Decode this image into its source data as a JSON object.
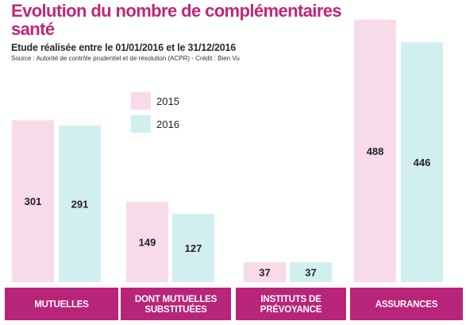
{
  "chart_data": {
    "type": "bar",
    "title": "Evolution du nombre de complémentaires santé",
    "subtitle": "Etude réalisée entre le 01/01/2016 et le 31/12/2016",
    "source": "Source : Autorité de contrôle prudentiel et de résolution (ACPR) - Crédit : Bien Vu",
    "categories": [
      [
        "MUTUELLES"
      ],
      [
        "DONT MUTUELLES",
        "SUBSTITUÉES"
      ],
      [
        "INSTITUTS DE",
        "PRÉVOYANCE"
      ],
      [
        "ASSURANCES"
      ]
    ],
    "series": [
      {
        "name": "2015",
        "values": [
          301,
          149,
          37,
          488
        ],
        "color": "#f7dbe8"
      },
      {
        "name": "2016",
        "values": [
          291,
          127,
          37,
          446
        ],
        "color": "#d2eff0"
      }
    ],
    "ylim": [
      0,
      500
    ],
    "grid": false,
    "legend": "top-center",
    "colors": {
      "title": "#c0267a",
      "category_band": "#b8247a",
      "category_text": "#ffffff"
    }
  }
}
